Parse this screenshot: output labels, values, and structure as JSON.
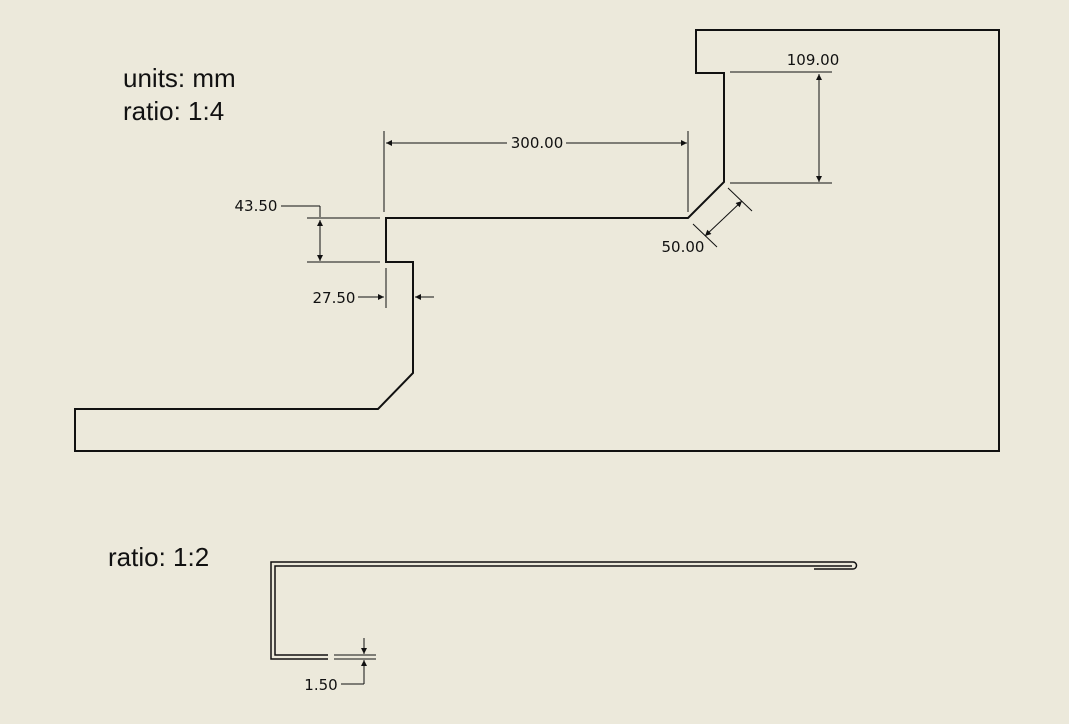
{
  "notes": {
    "units": "units: mm",
    "ratio_top": "ratio: 1:4",
    "ratio_bottom": "ratio: 1:2"
  },
  "dimensions": {
    "width_300": "300.00",
    "height_109": "109.00",
    "height_43_5": "43.50",
    "width_27_5": "27.50",
    "diag_50": "50.00",
    "thickness_1_5": "1.50"
  },
  "colors": {
    "background": "#ece9db",
    "line": "#111111"
  }
}
